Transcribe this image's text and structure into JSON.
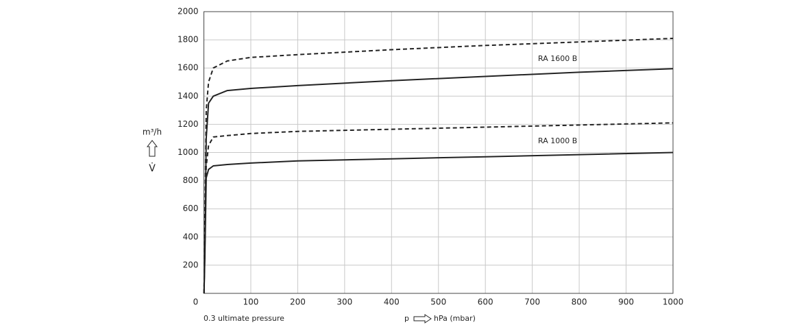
{
  "chart_data": {
    "type": "line",
    "x": [
      0.3,
      2,
      5,
      10,
      20,
      50,
      100,
      200,
      400,
      600,
      800,
      1000
    ],
    "series": [
      {
        "color": "#222222",
        "dashed": true,
        "values": [
          0,
          500,
          1300,
          1500,
          1600,
          1650,
          1675,
          1695,
          1730,
          1760,
          1785,
          1810
        ]
      },
      {
        "color": "#222222",
        "dashed": false,
        "values": [
          0,
          300,
          1100,
          1350,
          1400,
          1440,
          1455,
          1475,
          1510,
          1540,
          1570,
          1595
        ]
      },
      {
        "color": "#222222",
        "dashed": true,
        "values": [
          0,
          350,
          900,
          1050,
          1110,
          1120,
          1135,
          1150,
          1165,
          1180,
          1195,
          1210
        ]
      },
      {
        "color": "#222222",
        "dashed": false,
        "values": [
          0,
          250,
          820,
          880,
          905,
          915,
          925,
          940,
          955,
          970,
          985,
          1000
        ]
      }
    ],
    "annotations": [
      "RA 1600 B",
      "RA 1000 B",
      "0.3 ultimate pressure"
    ],
    "y_label_unit": "m³/h",
    "y_label_symbol": "V̇",
    "x_label_symbol": "p",
    "x_label": "hPa (mbar)",
    "xlim": [
      0,
      1000
    ],
    "xticks": [
      0,
      100,
      200,
      300,
      400,
      500,
      600,
      700,
      800,
      900,
      1000
    ],
    "ylim": [
      0,
      2000
    ],
    "yticks": [
      200,
      400,
      600,
      800,
      1000,
      1200,
      1400,
      1600,
      1800,
      2000
    ],
    "grid": true
  }
}
